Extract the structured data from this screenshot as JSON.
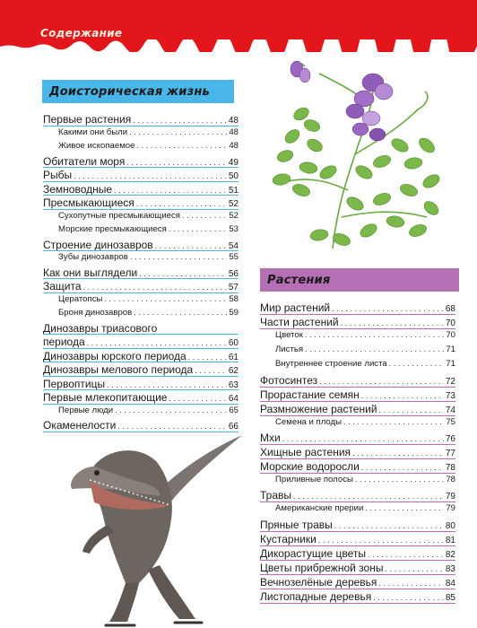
{
  "header": {
    "running_title": "Содержание"
  },
  "colors": {
    "band": "#e3171b",
    "prehistoric_accent": "#4ab6e8",
    "plants_accent": "#b56fb4"
  },
  "prehistoric": {
    "heading": "Доисторическая жизнь",
    "entries": [
      {
        "label": "Первые растения",
        "page": "48",
        "level": 1
      },
      {
        "label": "Какими они были",
        "page": "48",
        "level": 2
      },
      {
        "label": "Живое ископаемое",
        "page": "48",
        "level": 2
      },
      {
        "label": "Обитатели моря",
        "page": "49",
        "level": 1
      },
      {
        "label": "Рыбы",
        "page": "50",
        "level": 1
      },
      {
        "label": "Земноводные",
        "page": "51",
        "level": 1
      },
      {
        "label": "Пресмыкающиеся",
        "page": "52",
        "level": 1
      },
      {
        "label": "Сухопутные пресмыкающиеся",
        "page": "52",
        "level": 2
      },
      {
        "label": "Морские пресмыкающиеся",
        "page": "53",
        "level": 2
      },
      {
        "label": "Строение динозавров",
        "page": "54",
        "level": 1
      },
      {
        "label": "Зубы динозавров",
        "page": "55",
        "level": 2
      },
      {
        "label": "Как они выглядели",
        "page": "56",
        "level": 1
      },
      {
        "label": "Защита",
        "page": "57",
        "level": 1
      },
      {
        "label": "Цератопсы",
        "page": "58",
        "level": 2
      },
      {
        "label": "Броня динозавров",
        "page": "59",
        "level": 2
      },
      {
        "label": "Динозавры триасового",
        "page": "",
        "level": 1,
        "continued": true
      },
      {
        "label": "периода",
        "page": "60",
        "level": 1
      },
      {
        "label": "Динозавры юрского периода",
        "page": "61",
        "level": 1
      },
      {
        "label": "Динозавры мелового периода",
        "page": "62",
        "level": 1
      },
      {
        "label": "Первоптицы",
        "page": "63",
        "level": 1
      },
      {
        "label": "Первые млекопитающие",
        "page": "64",
        "level": 1
      },
      {
        "label": "Первые люди",
        "page": "65",
        "level": 2
      },
      {
        "label": "Окаменелости",
        "page": "66",
        "level": 1
      }
    ]
  },
  "plants": {
    "heading": "Растения",
    "entries": [
      {
        "label": "Мир растений",
        "page": "68",
        "level": 1
      },
      {
        "label": "Части растений",
        "page": "70",
        "level": 1
      },
      {
        "label": "Цветок",
        "page": "70",
        "level": 2
      },
      {
        "label": "Листья",
        "page": "71",
        "level": 2
      },
      {
        "label": "Внутреннее строение листа",
        "page": "71",
        "level": 2
      },
      {
        "label": "Фотосинтез",
        "page": "72",
        "level": 1
      },
      {
        "label": "Прорастание семян",
        "page": "73",
        "level": 1
      },
      {
        "label": "Размножение растений",
        "page": "74",
        "level": 1
      },
      {
        "label": "Семена и плоды",
        "page": "75",
        "level": 2
      },
      {
        "label": "Мхи",
        "page": "76",
        "level": 1
      },
      {
        "label": "Хищные растения",
        "page": "77",
        "level": 1
      },
      {
        "label": "Морские водоросли",
        "page": "78",
        "level": 1
      },
      {
        "label": "Приливные полосы",
        "page": "78",
        "level": 2
      },
      {
        "label": "Травы",
        "page": "79",
        "level": 1
      },
      {
        "label": "Американские прерии",
        "page": "79",
        "level": 2
      },
      {
        "label": "Пряные травы",
        "page": "80",
        "level": 1
      },
      {
        "label": "Кустарники",
        "page": "81",
        "level": 1
      },
      {
        "label": "Дикорастущие цветы",
        "page": "82",
        "level": 1
      },
      {
        "label": "Цветы прибрежной зоны",
        "page": "83",
        "level": 1
      },
      {
        "label": "Вечнозелёные деревья",
        "page": "84",
        "level": 1
      },
      {
        "label": "Листопадные деревья",
        "page": "85",
        "level": 1
      }
    ]
  },
  "illustrations": {
    "top_right": "sweet-pea-plant",
    "bottom_left": "spinosaurus-dinosaur"
  }
}
